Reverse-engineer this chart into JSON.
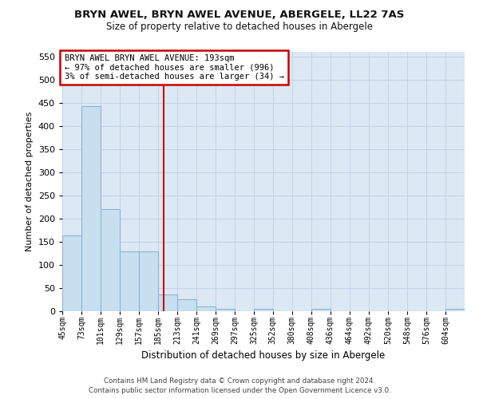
{
  "title1": "BRYN AWEL, BRYN AWEL AVENUE, ABERGELE, LL22 7AS",
  "title2": "Size of property relative to detached houses in Abergele",
  "xlabel": "Distribution of detached houses by size in Abergele",
  "ylabel": "Number of detached properties",
  "bin_labels": [
    "45sqm",
    "73sqm",
    "101sqm",
    "129sqm",
    "157sqm",
    "185sqm",
    "213sqm",
    "241sqm",
    "269sqm",
    "297sqm",
    "325sqm",
    "352sqm",
    "380sqm",
    "408sqm",
    "436sqm",
    "464sqm",
    "492sqm",
    "520sqm",
    "548sqm",
    "576sqm",
    "604sqm"
  ],
  "bin_edges": [
    45,
    73,
    101,
    129,
    157,
    185,
    213,
    241,
    269,
    297,
    325,
    352,
    380,
    408,
    436,
    464,
    492,
    520,
    548,
    576,
    604
  ],
  "bar_heights": [
    163,
    443,
    221,
    130,
    130,
    37,
    26,
    11,
    5,
    0,
    5,
    0,
    0,
    5,
    0,
    0,
    0,
    0,
    0,
    0,
    5
  ],
  "bar_color": "#c8dff0",
  "bar_edge_color": "#8ab4d4",
  "grid_color": "#c0d4e8",
  "bg_color": "#dce8f4",
  "red_line_x": 193,
  "red_line_color": "#cc0000",
  "annotation_text": "BRYN AWEL BRYN AWEL AVENUE: 193sqm\n← 97% of detached houses are smaller (996)\n3% of semi-detached houses are larger (34) →",
  "annotation_box_color": "#ffffff",
  "annotation_box_edge": "#cc0000",
  "ylim": [
    0,
    560
  ],
  "yticks": [
    0,
    50,
    100,
    150,
    200,
    250,
    300,
    350,
    400,
    450,
    500,
    550
  ],
  "footer1": "Contains HM Land Registry data © Crown copyright and database right 2024.",
  "footer2": "Contains public sector information licensed under the Open Government Licence v3.0."
}
